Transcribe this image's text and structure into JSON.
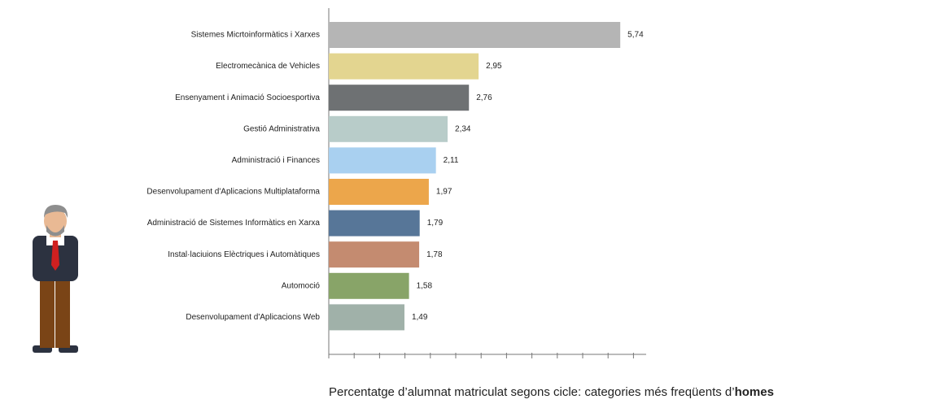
{
  "chart_data": {
    "type": "hbar",
    "categories": [
      "Sistemes Micrtoinformàtics i Xarxes",
      "Electromecànica de Vehicles",
      "Ensenyament i Animació Socioesportiva",
      "Gestió Administrativa",
      "Administració i Finances",
      "Desenvolupament d'Aplicacions Multiplataforma",
      "Administració de Sistemes Informàtics en Xarxa",
      "Instal·laciuions Elèctriques i Automàtiques",
      "Automoció",
      "Desenvolupament d'Aplicacions Web"
    ],
    "values": [
      5.74,
      2.95,
      2.76,
      2.34,
      2.11,
      1.97,
      1.79,
      1.78,
      1.58,
      1.49
    ],
    "value_labels": [
      "5,74",
      "2,95",
      "2,76",
      "2,34",
      "2,11",
      "1,97",
      "1,79",
      "1,78",
      "1,58",
      "1,49"
    ],
    "colors": [
      "#b5b5b5",
      "#e3d590",
      "#6e7173",
      "#b8ccc9",
      "#a9d0f0",
      "#eca64b",
      "#577698",
      "#c48b70",
      "#88a468",
      "#a0b1a9"
    ],
    "xlim": [
      0,
      6.25
    ],
    "xticks": [
      0,
      0.5,
      1,
      1.5,
      2,
      2.5,
      3,
      3.5,
      4,
      4.5,
      5,
      5.5,
      6
    ],
    "caption": "Percentatge d’alumnat matriculat segons cicle: categories més freqüents d’",
    "caption_emphasis": "homes"
  }
}
